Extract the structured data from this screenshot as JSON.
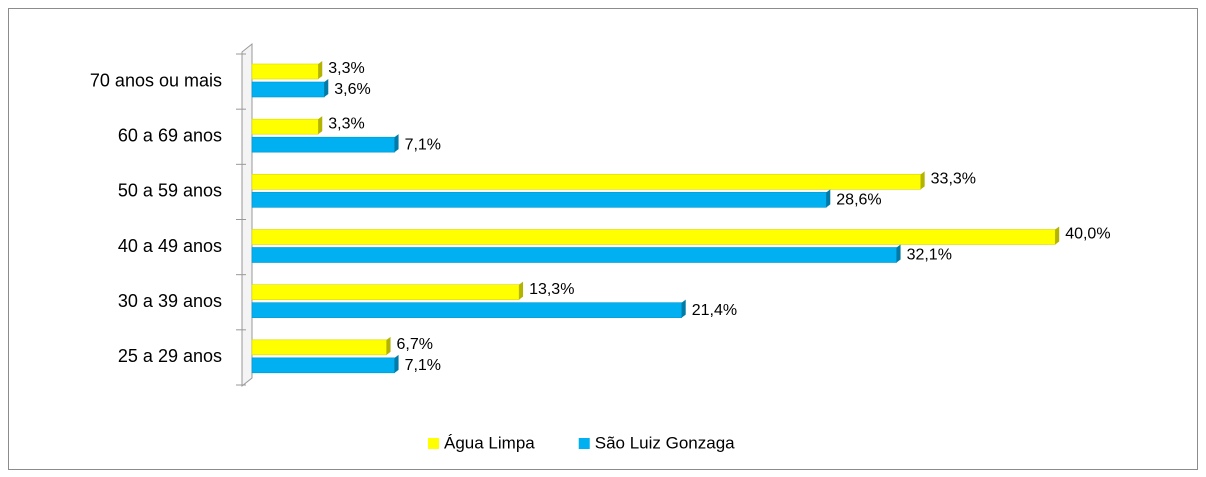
{
  "chart_data": {
    "type": "bar",
    "orientation": "horizontal",
    "categories": [
      "70 anos ou mais",
      "60 a 69 anos",
      "50 a 59 anos",
      "40 a 49 anos",
      "30 a 39 anos",
      "25 a 29 anos"
    ],
    "series": [
      {
        "name": "Água Limpa",
        "color": "#ffff00",
        "values": [
          3.3,
          3.3,
          33.3,
          40.0,
          13.3,
          6.7
        ],
        "value_labels": [
          "3,3%",
          "3,3%",
          "33,3%",
          "40,0%",
          "13,3%",
          "6,7%"
        ]
      },
      {
        "name": "São Luiz Gonzaga",
        "color": "#00b0f0",
        "values": [
          3.6,
          7.1,
          28.6,
          32.1,
          21.4,
          7.1
        ],
        "value_labels": [
          "3,6%",
          "7,1%",
          "28,6%",
          "32,1%",
          "21,4%",
          "7,1%"
        ]
      }
    ],
    "legend": "bottom"
  }
}
